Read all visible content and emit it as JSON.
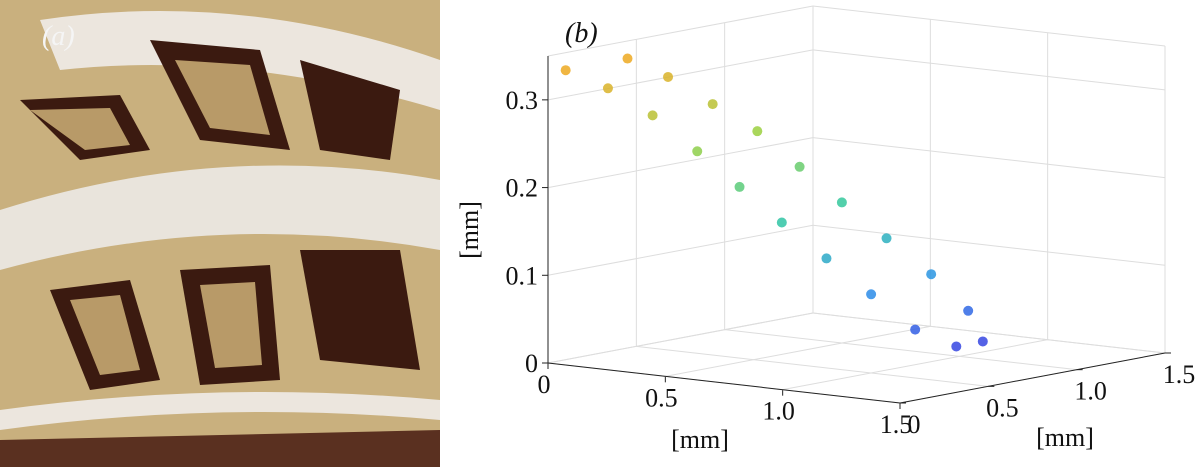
{
  "figure_a": {
    "label": "(a)"
  },
  "chart_data": {
    "type": "scatter3d",
    "label": "(b)",
    "xlabel": "[mm]",
    "ylabel": "[mm]",
    "zlabel": "[mm]",
    "xlim": [
      0,
      1.5
    ],
    "ylim": [
      0,
      1.5
    ],
    "zlim": [
      0,
      0.35
    ],
    "xticks": [
      0,
      0.5,
      {
        "value": 1,
        "label": "1.0"
      },
      1.5
    ],
    "yticks": [
      0,
      0.5,
      {
        "value": 1,
        "label": "1.0"
      },
      1.5
    ],
    "zticks": [
      0,
      0.1,
      0.2,
      0.3
    ],
    "grid": true,
    "colormap": [
      "#3a2fe0",
      "#2a90e8",
      "#30c8a0",
      "#9ad040",
      "#f0a820"
    ],
    "series": [
      {
        "x": [
          0,
          0.12,
          0.25,
          0.38,
          0.5,
          0.62,
          0.75,
          0.88,
          1.0,
          1.1
        ],
        "y": [
          0.1,
          0.18,
          0.26,
          0.34,
          0.42,
          0.5,
          0.58,
          0.66,
          0.75,
          0.85
        ],
        "z": [
          0.33,
          0.31,
          0.28,
          0.24,
          0.2,
          0.16,
          0.12,
          0.08,
          0.04,
          0.02
        ]
      },
      {
        "x": [
          0,
          0.12,
          0.25,
          0.38,
          0.5,
          0.62,
          0.75,
          0.88,
          1.0,
          1.1
        ],
        "y": [
          0.45,
          0.52,
          0.6,
          0.68,
          0.76,
          0.84,
          0.92,
          1.0,
          1.05,
          1.0
        ],
        "z": [
          0.33,
          0.31,
          0.28,
          0.25,
          0.21,
          0.17,
          0.13,
          0.09,
          0.05,
          0.02
        ]
      }
    ]
  }
}
